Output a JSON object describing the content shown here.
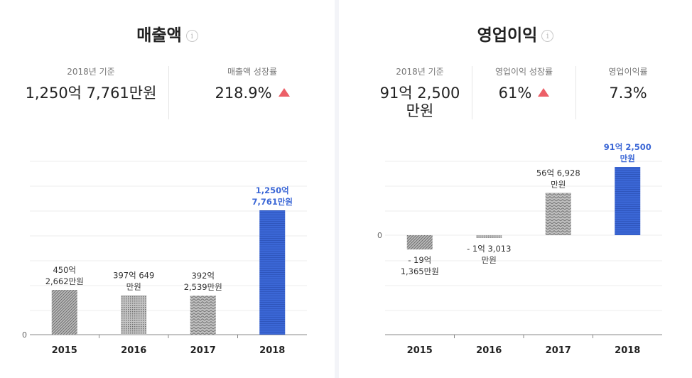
{
  "revenue": {
    "title": "매출액",
    "stats": [
      {
        "label": "2018년 기준",
        "value": "1,250억 7,761만원",
        "trend": ""
      },
      {
        "label": "매출액 성장률",
        "value": "218.9%",
        "trend": "up"
      }
    ]
  },
  "profit": {
    "title": "영업이익",
    "stats": [
      {
        "label": "2018년 기준",
        "value_line1": "91억 2,500",
        "value_line2": "만원",
        "trend": ""
      },
      {
        "label": "영업이익 성장률",
        "value": "61%",
        "trend": "up"
      },
      {
        "label": "영업이익률",
        "value": "7.3%",
        "trend": ""
      }
    ]
  },
  "colors": {
    "highlight": "#3b67d6",
    "bar_gray": "#999999",
    "up": "#ec5f67"
  },
  "chart_data": [
    {
      "type": "bar",
      "title": "매출액",
      "unit": "억원",
      "categories": [
        "2015",
        "2016",
        "2017",
        "2018"
      ],
      "values": [
        450.2662,
        397.0649,
        392.2539,
        1250.7761
      ],
      "labels": [
        [
          "450억",
          "2,662만원"
        ],
        [
          "397억 649",
          "만원"
        ],
        [
          "392억",
          "2,539만원"
        ],
        [
          "1,250억",
          "7,761만원"
        ]
      ],
      "highlight_index": 3,
      "zero_label": "0",
      "ylim": [
        0,
        1250.7761
      ],
      "grid": true
    },
    {
      "type": "bar",
      "title": "영업이익",
      "unit": "억원",
      "categories": [
        "2015",
        "2016",
        "2017",
        "2018"
      ],
      "values": [
        -19.1365,
        -1.3013,
        56.6928,
        91.25
      ],
      "labels": [
        [
          "- 19억",
          "1,365만원"
        ],
        [
          "- 1억 3,013",
          "만원"
        ],
        [
          "56억 6,928",
          "만원"
        ],
        [
          "91억 2,500",
          "만원"
        ]
      ],
      "highlight_index": 3,
      "zero_label": "0",
      "ylim": [
        -91.25,
        91.25
      ],
      "grid": true
    }
  ]
}
